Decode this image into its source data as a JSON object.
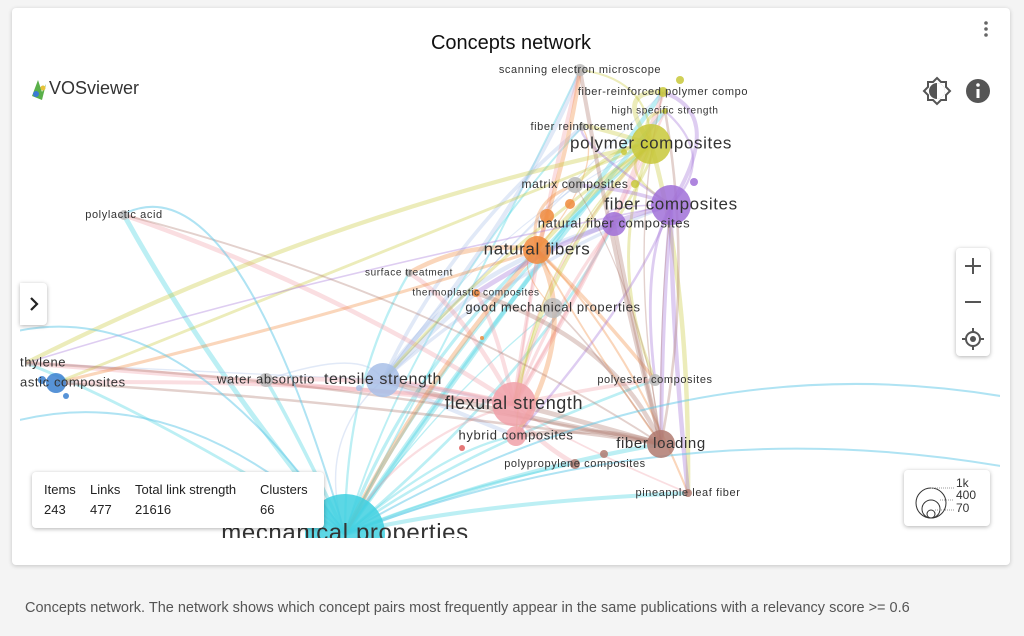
{
  "header": {
    "title": "Concepts network",
    "logo": "VOSviewer"
  },
  "nodes": [
    {
      "label": "scanning electron microscope"
    },
    {
      "label": "fiber-reinforced polymer compo"
    },
    {
      "label": "high specific strength"
    },
    {
      "label": "fiber reinforcement"
    },
    {
      "label": "polymer composites"
    },
    {
      "label": "matrix composites"
    },
    {
      "label": "fiber composites"
    },
    {
      "label": "natural fiber composites"
    },
    {
      "label": "natural fibers"
    },
    {
      "label": "polylactic acid"
    },
    {
      "label": "surface treatment"
    },
    {
      "label": "thermoplastic composites"
    },
    {
      "label": "good mechanical properties"
    },
    {
      "label": "thylene"
    },
    {
      "label": "astic composites"
    },
    {
      "label": "water absorptio"
    },
    {
      "label": "tensile strength"
    },
    {
      "label": "flexural strength"
    },
    {
      "label": "polyester composites"
    },
    {
      "label": "hybrid composites"
    },
    {
      "label": "fiber loading"
    },
    {
      "label": "polypropylene composites"
    },
    {
      "label": "pineapple leaf fiber"
    },
    {
      "label": "mechanical properties"
    }
  ],
  "stats": [
    {
      "label": "Items",
      "value": 243
    },
    {
      "label": "Links",
      "value": 477
    },
    {
      "label": "Total link strength",
      "value": 21616
    },
    {
      "label": "Clusters",
      "value": 66
    }
  ],
  "size_legend": [
    "1k",
    "400",
    "70"
  ],
  "caption": "Concepts network. The network shows which concept pairs most frequently appear in the same publications with a relevancy score >= 0.6"
}
